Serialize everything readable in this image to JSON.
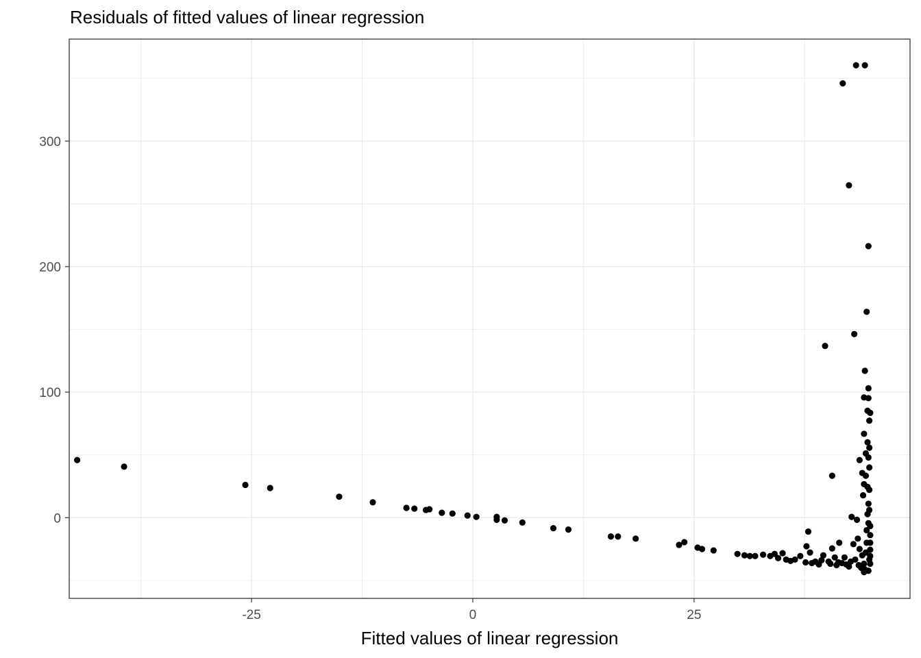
{
  "chart_data": {
    "type": "scatter",
    "title": "Residuals of fitted values of linear regression",
    "xlabel": "Fitted values of linear regression",
    "ylabel": "",
    "xlim": [
      -45.6,
      49.4
    ],
    "ylim": [
      -64.3,
      381.3
    ],
    "x_ticks": [
      -25,
      0,
      25
    ],
    "x_tick_labels": [
      "-25",
      "0",
      "25"
    ],
    "y_ticks": [
      0,
      100,
      200,
      300
    ],
    "y_tick_labels": [
      "0",
      "100",
      "200",
      "300"
    ],
    "grid": true,
    "point_color": "#000000",
    "points": [
      {
        "x": -44.7,
        "y": 45.9
      },
      {
        "x": -39.4,
        "y": 40.6
      },
      {
        "x": -25.7,
        "y": 26.1
      },
      {
        "x": -22.9,
        "y": 23.6
      },
      {
        "x": -15.1,
        "y": 16.7
      },
      {
        "x": -11.3,
        "y": 12.2
      },
      {
        "x": -7.5,
        "y": 7.8
      },
      {
        "x": -6.6,
        "y": 7.2
      },
      {
        "x": -5.3,
        "y": 6.1
      },
      {
        "x": -4.9,
        "y": 6.7
      },
      {
        "x": -3.5,
        "y": 3.9
      },
      {
        "x": -2.3,
        "y": 3.3
      },
      {
        "x": -0.6,
        "y": 1.7
      },
      {
        "x": 0.4,
        "y": 0.6
      },
      {
        "x": 2.7,
        "y": 0.6
      },
      {
        "x": 2.7,
        "y": -1.7
      },
      {
        "x": 3.6,
        "y": -2.2
      },
      {
        "x": 5.6,
        "y": -3.9
      },
      {
        "x": 9.1,
        "y": -8.4
      },
      {
        "x": 10.8,
        "y": -9.5
      },
      {
        "x": 15.6,
        "y": -15.0
      },
      {
        "x": 16.4,
        "y": -15.0
      },
      {
        "x": 18.4,
        "y": -16.7
      },
      {
        "x": 23.3,
        "y": -21.7
      },
      {
        "x": 23.9,
        "y": -19.5
      },
      {
        "x": 25.4,
        "y": -23.9
      },
      {
        "x": 25.9,
        "y": -25.0
      },
      {
        "x": 27.2,
        "y": -26.1
      },
      {
        "x": 29.9,
        "y": -28.9
      },
      {
        "x": 30.7,
        "y": -30.0
      },
      {
        "x": 31.3,
        "y": -30.6
      },
      {
        "x": 31.9,
        "y": -30.6
      },
      {
        "x": 32.8,
        "y": -29.5
      },
      {
        "x": 33.6,
        "y": -30.6
      },
      {
        "x": 34.1,
        "y": -28.9
      },
      {
        "x": 34.5,
        "y": -32.2
      },
      {
        "x": 35.0,
        "y": -28.3
      },
      {
        "x": 35.4,
        "y": -33.4
      },
      {
        "x": 35.9,
        "y": -34.5
      },
      {
        "x": 36.4,
        "y": -33.4
      },
      {
        "x": 37.0,
        "y": -30.6
      },
      {
        "x": 37.6,
        "y": -35.6
      },
      {
        "x": 37.7,
        "y": -22.8
      },
      {
        "x": 37.9,
        "y": -11.1
      },
      {
        "x": 38.1,
        "y": -27.8
      },
      {
        "x": 38.3,
        "y": -36.2
      },
      {
        "x": 38.7,
        "y": -35.0
      },
      {
        "x": 39.1,
        "y": -37.3
      },
      {
        "x": 39.4,
        "y": -33.9
      },
      {
        "x": 39.6,
        "y": -30.0
      },
      {
        "x": 39.8,
        "y": 136.8
      },
      {
        "x": 40.2,
        "y": -35.0
      },
      {
        "x": 40.4,
        "y": -36.7
      },
      {
        "x": 40.6,
        "y": 33.4
      },
      {
        "x": 40.6,
        "y": -24.5
      },
      {
        "x": 40.9,
        "y": -31.7
      },
      {
        "x": 41.1,
        "y": -37.8
      },
      {
        "x": 41.3,
        "y": -35.6
      },
      {
        "x": 41.4,
        "y": -20.0
      },
      {
        "x": 41.7,
        "y": -36.2
      },
      {
        "x": 41.8,
        "y": 346.0
      },
      {
        "x": 42.0,
        "y": -31.7
      },
      {
        "x": 42.2,
        "y": -37.3
      },
      {
        "x": 42.5,
        "y": 264.8
      },
      {
        "x": 42.5,
        "y": -38.9
      },
      {
        "x": 42.7,
        "y": -35.0
      },
      {
        "x": 42.8,
        "y": 0.6
      },
      {
        "x": 43.0,
        "y": -21.1
      },
      {
        "x": 43.1,
        "y": 146.3
      },
      {
        "x": 43.2,
        "y": -33.4
      },
      {
        "x": 43.3,
        "y": 360.4
      },
      {
        "x": 43.4,
        "y": -1.7
      },
      {
        "x": 43.5,
        "y": -16.7
      },
      {
        "x": 43.6,
        "y": -37.8
      },
      {
        "x": 43.7,
        "y": -25.0
      },
      {
        "x": 43.7,
        "y": 45.9
      },
      {
        "x": 43.9,
        "y": -40.0
      },
      {
        "x": 44.0,
        "y": -30.0
      },
      {
        "x": 44.0,
        "y": 35.6
      },
      {
        "x": 44.1,
        "y": 17.8
      },
      {
        "x": 44.2,
        "y": 26.7
      },
      {
        "x": 44.2,
        "y": 66.8
      },
      {
        "x": 44.2,
        "y": 95.8
      },
      {
        "x": 44.2,
        "y": -36.7
      },
      {
        "x": 44.3,
        "y": -41.2
      },
      {
        "x": 44.3,
        "y": 117.0
      },
      {
        "x": 44.3,
        "y": 360.4
      },
      {
        "x": 44.4,
        "y": -27.8
      },
      {
        "x": 44.4,
        "y": 51.2
      },
      {
        "x": 44.4,
        "y": 33.4
      },
      {
        "x": 44.5,
        "y": -20.0
      },
      {
        "x": 44.5,
        "y": -10.0
      },
      {
        "x": 44.5,
        "y": 164.0
      },
      {
        "x": 44.6,
        "y": 60.1
      },
      {
        "x": 44.6,
        "y": 24.5
      },
      {
        "x": 44.6,
        "y": 85.2
      },
      {
        "x": 44.6,
        "y": 2.8
      },
      {
        "x": 44.7,
        "y": -4.4
      },
      {
        "x": 44.7,
        "y": 95.2
      },
      {
        "x": 44.7,
        "y": 47.9
      },
      {
        "x": 44.7,
        "y": 11.1
      },
      {
        "x": 44.7,
        "y": 216.3
      },
      {
        "x": 44.7,
        "y": 103.1
      },
      {
        "x": 44.8,
        "y": 77.3
      },
      {
        "x": 44.8,
        "y": 55.7
      },
      {
        "x": 44.8,
        "y": 40.0
      },
      {
        "x": 44.8,
        "y": 22.2
      },
      {
        "x": 44.8,
        "y": 6.1
      },
      {
        "x": 44.8,
        "y": -33.4
      },
      {
        "x": 44.9,
        "y": -25.6
      },
      {
        "x": 44.9,
        "y": -13.9
      },
      {
        "x": 44.9,
        "y": 83.5
      },
      {
        "x": 44.9,
        "y": -6.7
      },
      {
        "x": 44.9,
        "y": -30.6
      },
      {
        "x": 44.9,
        "y": -36.7
      },
      {
        "x": 44.9,
        "y": -20.0
      },
      {
        "x": 44.7,
        "y": -42.3
      },
      {
        "x": 44.2,
        "y": -43.4
      },
      {
        "x": 43.8,
        "y": -38.9
      }
    ]
  }
}
